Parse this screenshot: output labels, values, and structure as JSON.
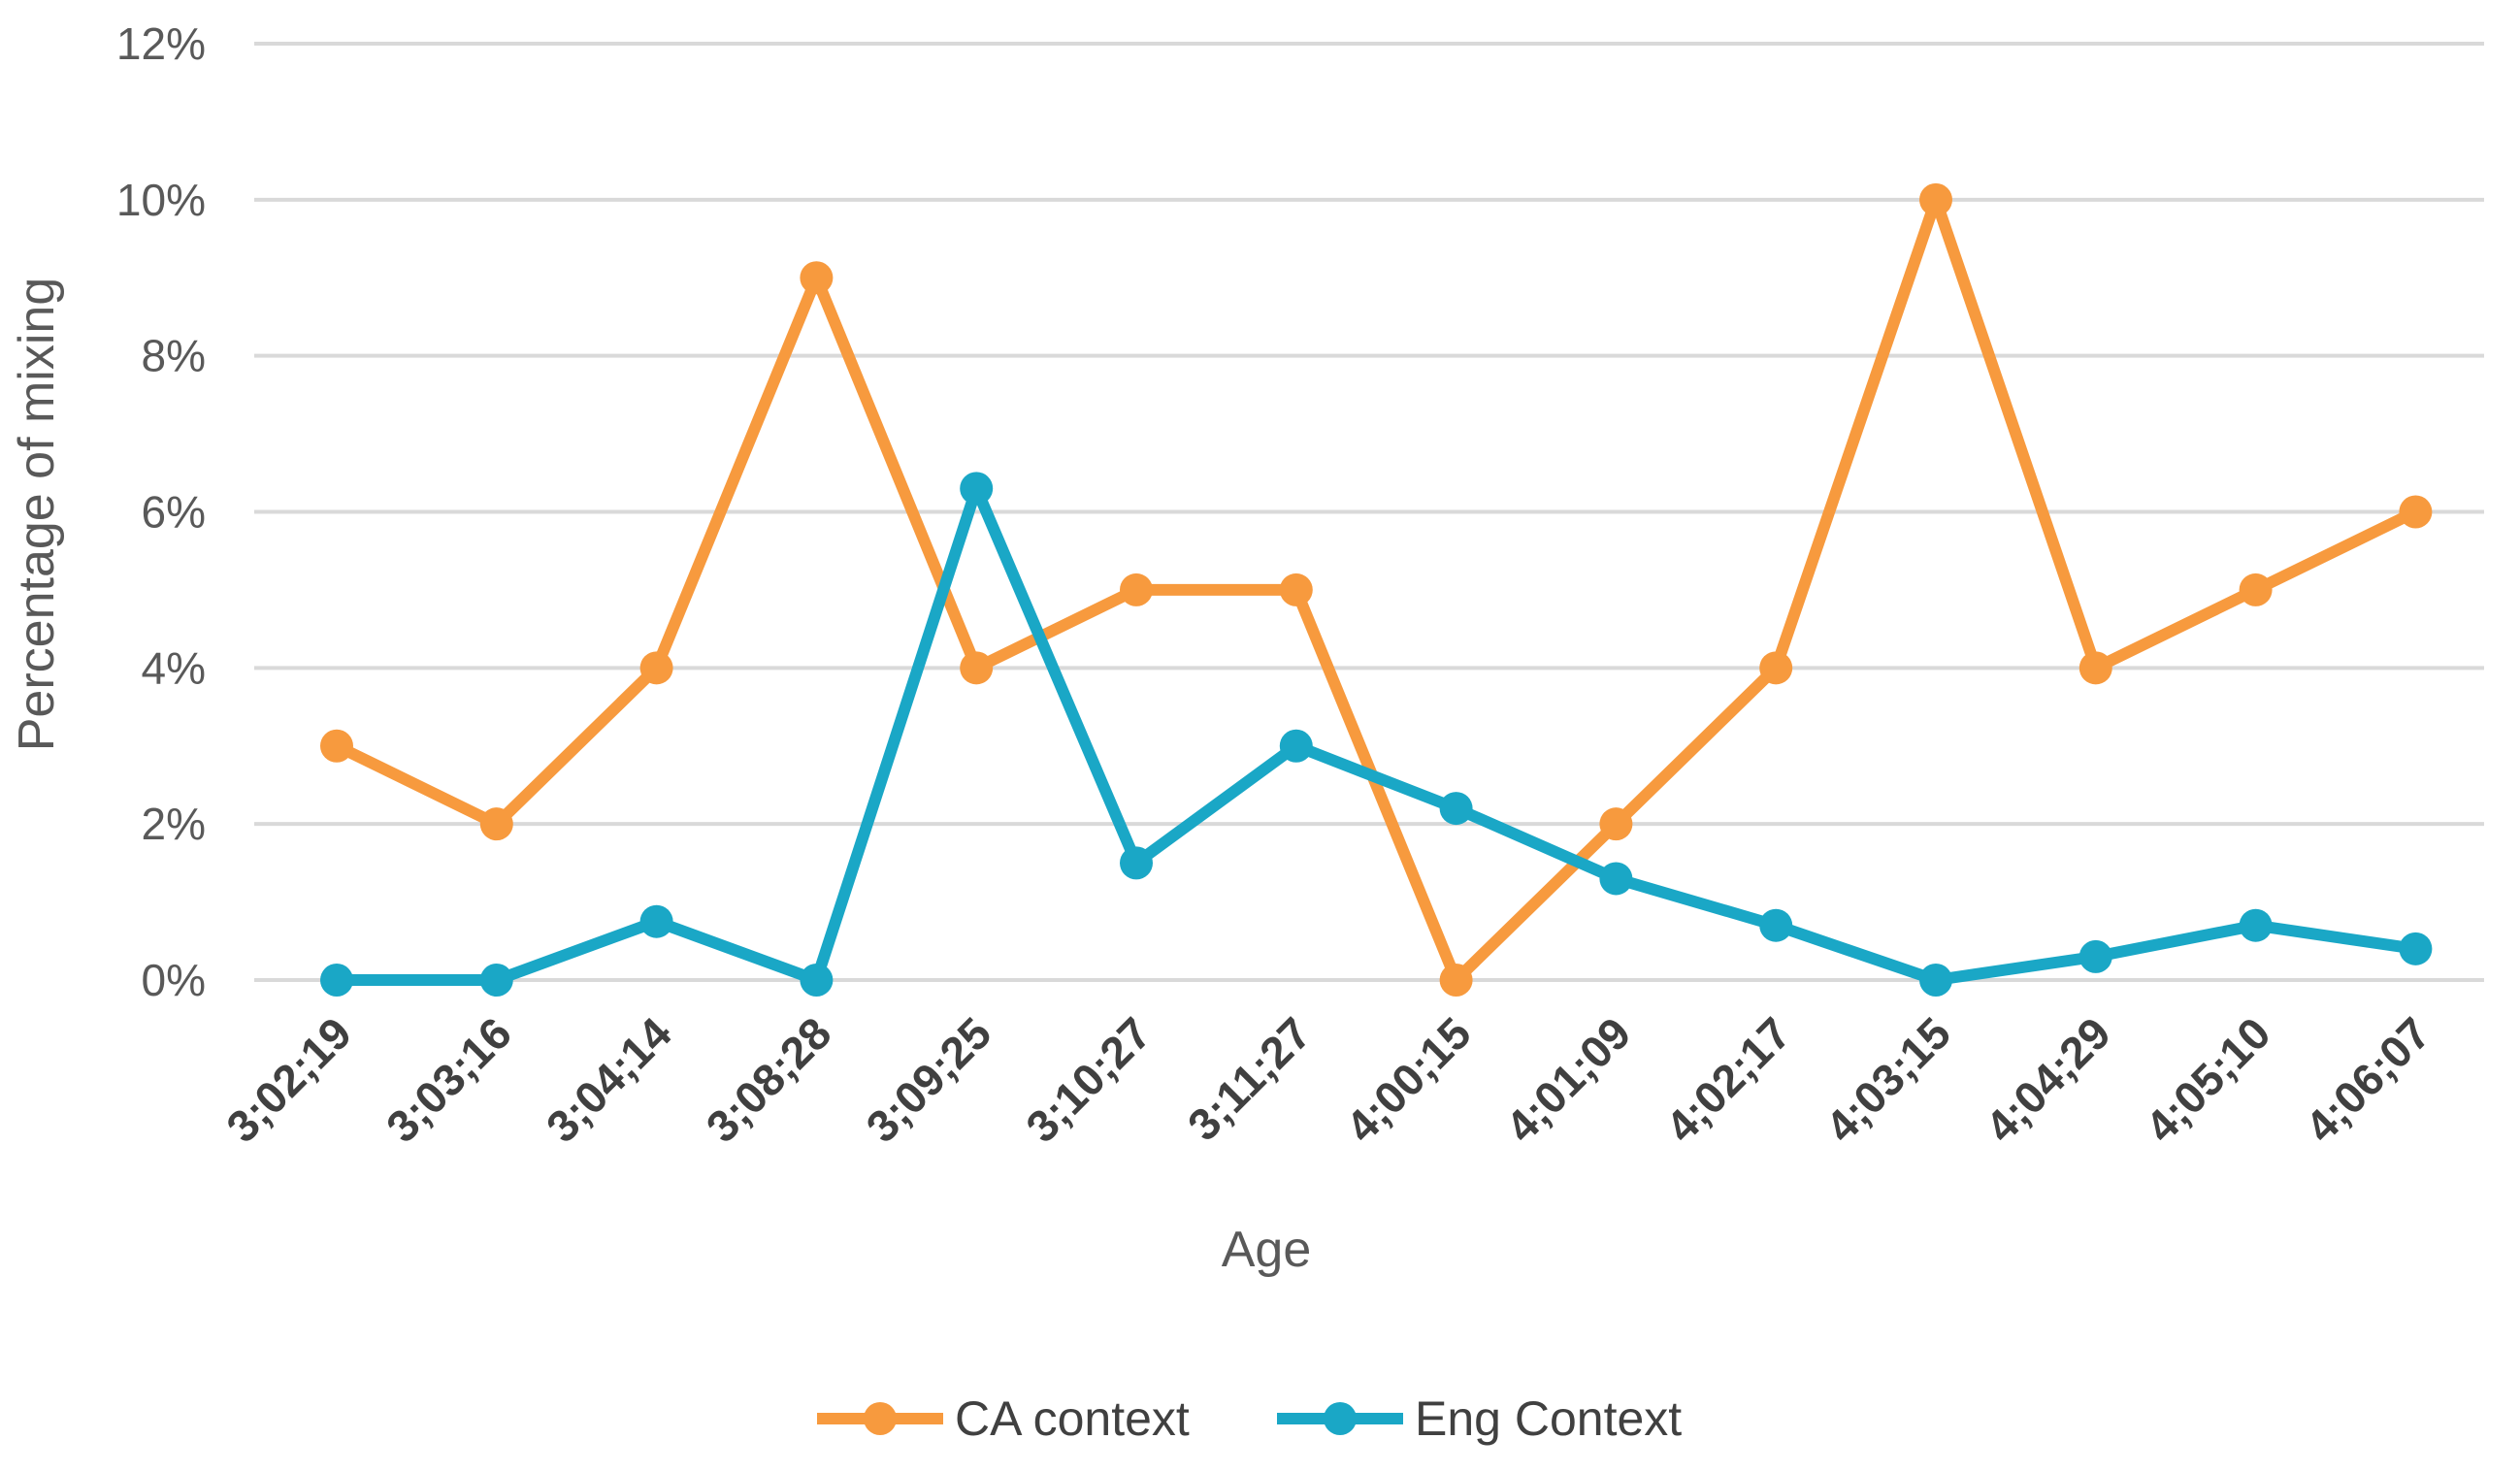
{
  "chart_data": {
    "type": "line",
    "title": "",
    "xlabel": "Age",
    "ylabel": "Percentage of mixing",
    "ylim": [
      0,
      12
    ],
    "yticks": [
      "0%",
      "2%",
      "4%",
      "6%",
      "8%",
      "10%",
      "12%"
    ],
    "y_tick_values": [
      0,
      2,
      4,
      6,
      8,
      10,
      12
    ],
    "grid": true,
    "legend_position": "bottom",
    "categories": [
      "3;02;19",
      "3;03;16",
      "3;04;14",
      "3;08;28",
      "3;09;25",
      "3;10;27",
      "3;11;27",
      "4;00;15",
      "4;01;09",
      "4;02;17",
      "4;03;15",
      "4;04;29",
      "4;05;10",
      "4;06;07"
    ],
    "series": [
      {
        "name": "CA context",
        "color": "#F79A3E",
        "values": [
          3,
          2,
          4,
          9,
          4,
          5,
          5,
          0,
          2,
          4,
          10,
          4,
          5,
          6
        ]
      },
      {
        "name": "Eng Context",
        "color": "#1AA7C6",
        "values": [
          0,
          0,
          0.75,
          0,
          6.3,
          1.5,
          3,
          2.2,
          1.3,
          0.7,
          0,
          0.3,
          0.7,
          0.4
        ]
      }
    ]
  }
}
